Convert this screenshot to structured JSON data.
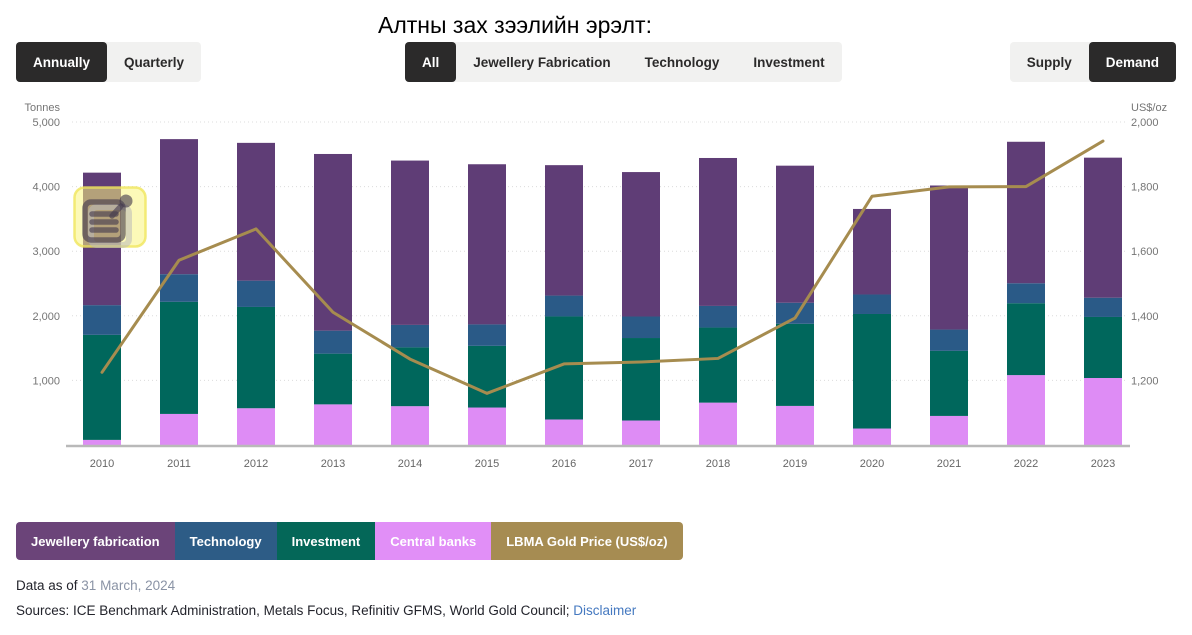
{
  "title": "Алтны зах зээлийн эрэлт:",
  "controls": {
    "frequency": {
      "options": [
        "Annually",
        "Quarterly"
      ],
      "selected": "Annually"
    },
    "category": {
      "options": [
        "All",
        "Jewellery Fabrication",
        "Technology",
        "Investment"
      ],
      "selected": "All"
    },
    "side": {
      "options": [
        "Supply",
        "Demand"
      ],
      "selected": "Demand"
    }
  },
  "chart_data": {
    "type": "bar",
    "stacked": true,
    "grid": "dotted-horizontal",
    "categories": [
      "2010",
      "2011",
      "2012",
      "2013",
      "2014",
      "2015",
      "2016",
      "2017",
      "2018",
      "2019",
      "2020",
      "2021",
      "2022",
      "2023"
    ],
    "series": [
      {
        "name": "Jewellery fabrication",
        "color": "#5f3d76",
        "values": [
          2051,
          2091,
          2133,
          2735,
          2544,
          2479,
          2019,
          2236,
          2290,
          2122,
          1324,
          2230,
          2190,
          2168
        ]
      },
      {
        "name": "Technology",
        "color": "#2a5a87",
        "values": [
          460,
          428,
          407,
          356,
          348,
          332,
          323,
          333,
          335,
          326,
          302,
          330,
          309,
          298
        ]
      },
      {
        "name": "Investment",
        "color": "#00675c",
        "values": [
          1626,
          1735,
          1568,
          785,
          910,
          955,
          1595,
          1277,
          1162,
          1271,
          1773,
          1007,
          1113,
          945
        ]
      },
      {
        "name": "Central banks",
        "color": "#de8cf5",
        "values": [
          79,
          481,
          569,
          629,
          601,
          580,
          395,
          379,
          656,
          605,
          255,
          450,
          1082,
          1037
        ]
      }
    ],
    "stack_order_bottom_to_top": [
      "Central banks",
      "Investment",
      "Technology",
      "Jewellery fabrication"
    ],
    "line_series": {
      "name": "LBMA Gold Price (US$/oz)",
      "color": "#a68c4f",
      "values": [
        1225,
        1572,
        1669,
        1411,
        1266,
        1160,
        1251,
        1257,
        1268,
        1393,
        1770,
        1799,
        1800,
        1941
      ]
    },
    "left_axis": {
      "label": "Tonnes",
      "min": 0,
      "max": 5000,
      "ticks": [
        "5,000",
        "4,000",
        "3,000",
        "2,000",
        "1,000"
      ]
    },
    "right_axis": {
      "label": "US$/oz",
      "min": 1000,
      "max": 2000,
      "ticks": [
        "2,000",
        "1,800",
        "1,600",
        "1,400",
        "1,200"
      ]
    }
  },
  "legend": [
    {
      "label": "Jewellery fabrication",
      "color": "#6b4479"
    },
    {
      "label": "Technology",
      "color": "#2d5c86"
    },
    {
      "label": "Investment",
      "color": "#046758"
    },
    {
      "label": "Central banks",
      "color": "#e18ff7"
    },
    {
      "label": "LBMA Gold Price (US$/oz)",
      "color": "#a68c52"
    }
  ],
  "footer": {
    "data_as_of_label": "Data as of ",
    "data_as_of_value": "31 March, 2024",
    "sources_text": "Sources: ICE Benchmark Administration, Metals Focus, Refinitiv GFMS, World Gold Council; ",
    "disclaimer_label": "Disclaimer"
  },
  "overlay": {
    "icon": "clipboard-pin-icon",
    "highlight_color": "#f9f47e"
  }
}
